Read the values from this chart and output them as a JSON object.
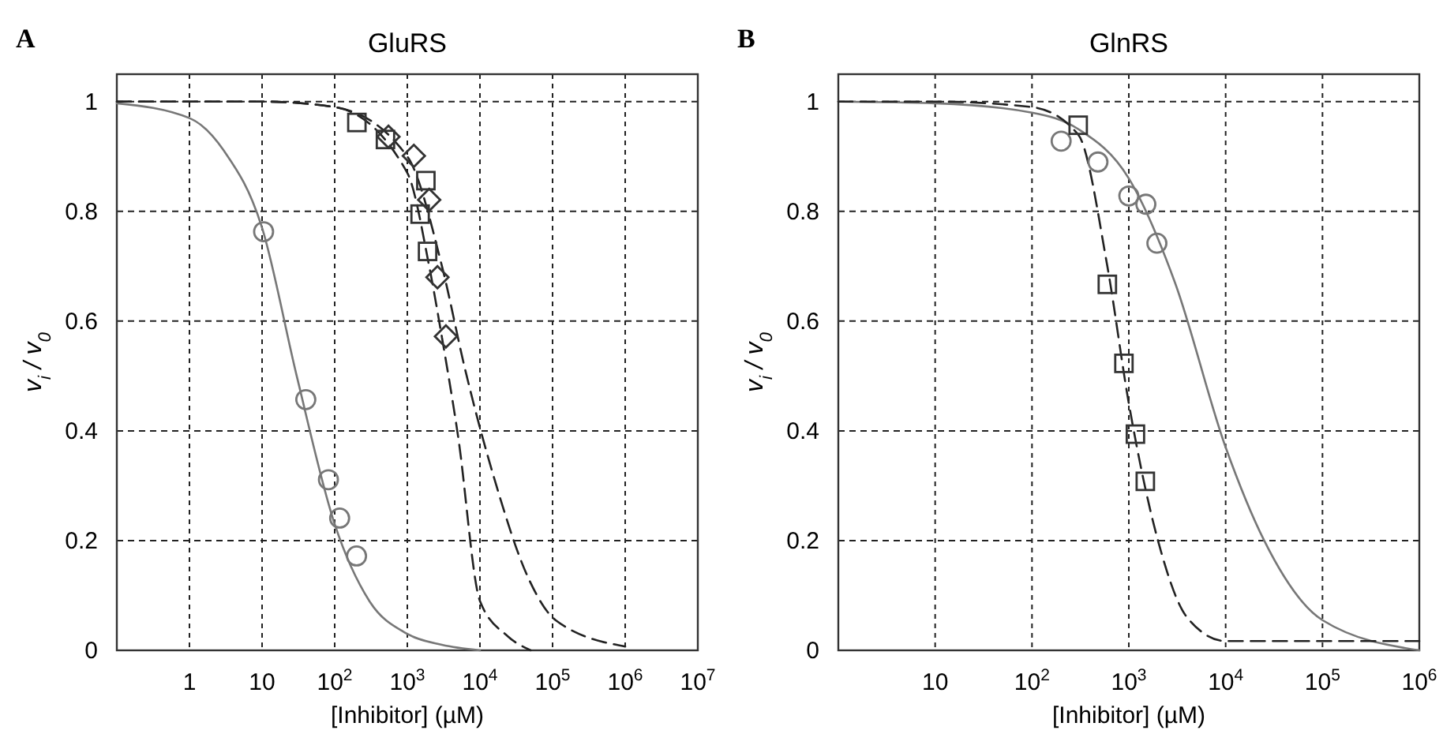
{
  "chart_data": [
    {
      "type": "scatter",
      "title": "GluRS",
      "xlabel": "[Inhibitor] (µM)",
      "ylabel": "v$_{i}$ / v$_{0}$",
      "annotations": [
        "A"
      ],
      "log": "x",
      "grid": true,
      "xlim": [
        0.1,
        10000000
      ],
      "xticks": [
        {
          "value": 1,
          "label": "1"
        },
        {
          "value": 10,
          "label": "10"
        },
        {
          "value": 100,
          "label": "10$^{2}$"
        },
        {
          "value": 1000,
          "label": "10$^{3}$"
        },
        {
          "value": 10000,
          "label": "10$^{4}$"
        },
        {
          "value": 100000,
          "label": "10$^{5}$"
        },
        {
          "value": 1000000,
          "label": "10$^{6}$"
        },
        {
          "value": 10000000,
          "label": "10$^{7}$"
        }
      ],
      "ylim": [
        0,
        1.05
      ],
      "yticks": [
        0,
        0.2,
        0.4,
        0.6,
        0.8,
        1
      ],
      "series": [
        {
          "type": "line",
          "color": "#777777",
          "line_style": "solid",
          "x": [
            0.1,
            1,
            3,
            10,
            30,
            100,
            300,
            1000,
            3000,
            10000
          ],
          "values": [
            0.997,
            0.97,
            0.91,
            0.77,
            0.5,
            0.23,
            0.09,
            0.03,
            0.01,
            0
          ]
        },
        {
          "type": "line",
          "color": "#222222",
          "line_style": "dashed",
          "x": [
            0.1,
            10,
            100,
            1000,
            2000,
            3000,
            5000,
            10000,
            24000,
            50000
          ],
          "values": [
            1,
            1,
            0.99,
            0.87,
            0.7,
            0.57,
            0.39,
            0.09,
            0.026,
            0
          ]
        },
        {
          "type": "line",
          "color": "#222222",
          "line_style": "dashed",
          "x": [
            0.1,
            10,
            100,
            1000,
            3000,
            6300,
            16000,
            47000,
            110000,
            1000000
          ],
          "values": [
            1,
            1,
            0.99,
            0.9,
            0.7,
            0.51,
            0.31,
            0.13,
            0.055,
            0.007
          ]
        },
        {
          "color": "#777777",
          "marker": "circle",
          "x": [
            10.5,
            40,
            82,
            117,
            200
          ],
          "values": [
            0.763,
            0.457,
            0.311,
            0.241,
            0.172
          ]
        },
        {
          "color": "#333333",
          "marker": "square",
          "x": [
            202,
            500,
            1800,
            1500,
            1900
          ],
          "values": [
            0.962,
            0.931,
            0.856,
            0.795,
            0.727
          ]
        },
        {
          "color": "#333333",
          "marker": "diamond",
          "x": [
            550,
            1230,
            2000,
            2600,
            3400
          ],
          "values": [
            0.936,
            0.901,
            0.821,
            0.68,
            0.572
          ]
        }
      ]
    },
    {
      "type": "scatter",
      "title": "GlnRS",
      "xlabel": "[Inhibitor] (µM)",
      "ylabel": "v$_{i}$ / v$_{0}$",
      "annotations": [
        "B"
      ],
      "log": "x",
      "grid": true,
      "xlim": [
        1,
        1000000
      ],
      "xticks": [
        {
          "value": 10,
          "label": "10"
        },
        {
          "value": 100,
          "label": "10$^{2}$"
        },
        {
          "value": 1000,
          "label": "10$^{3}$"
        },
        {
          "value": 10000,
          "label": "10$^{4}$"
        },
        {
          "value": 100000,
          "label": "10$^{5}$"
        },
        {
          "value": 1000000,
          "label": "10$^{6}$"
        }
      ],
      "ylim": [
        0,
        1.05
      ],
      "yticks": [
        0,
        0.2,
        0.4,
        0.6,
        0.8,
        1
      ],
      "series": [
        {
          "type": "line",
          "color": "#777777",
          "line_style": "solid",
          "x": [
            1,
            10,
            100,
            300,
            1000,
            3000,
            10000,
            25000,
            100000,
            1000000
          ],
          "values": [
            1,
            0.997,
            0.98,
            0.95,
            0.86,
            0.67,
            0.37,
            0.2,
            0.055,
            0
          ]
        },
        {
          "type": "line",
          "color": "#222222",
          "line_style": "dashed",
          "x": [
            1,
            10,
            100,
            300,
            600,
            1000,
            2000,
            4000,
            10000,
            1000000
          ],
          "values": [
            1,
            1,
            0.99,
            0.94,
            0.7,
            0.45,
            0.2,
            0.06,
            0.017,
            0.017
          ]
        },
        {
          "color": "#777777",
          "marker": "circle",
          "x": [
            200,
            480,
            1000,
            1500,
            1950
          ],
          "values": [
            0.928,
            0.89,
            0.828,
            0.813,
            0.742
          ]
        },
        {
          "color": "#333333",
          "marker": "square",
          "x": [
            300,
            600,
            890,
            1170,
            1480
          ],
          "values": [
            0.957,
            0.667,
            0.523,
            0.394,
            0.308
          ]
        }
      ]
    }
  ]
}
